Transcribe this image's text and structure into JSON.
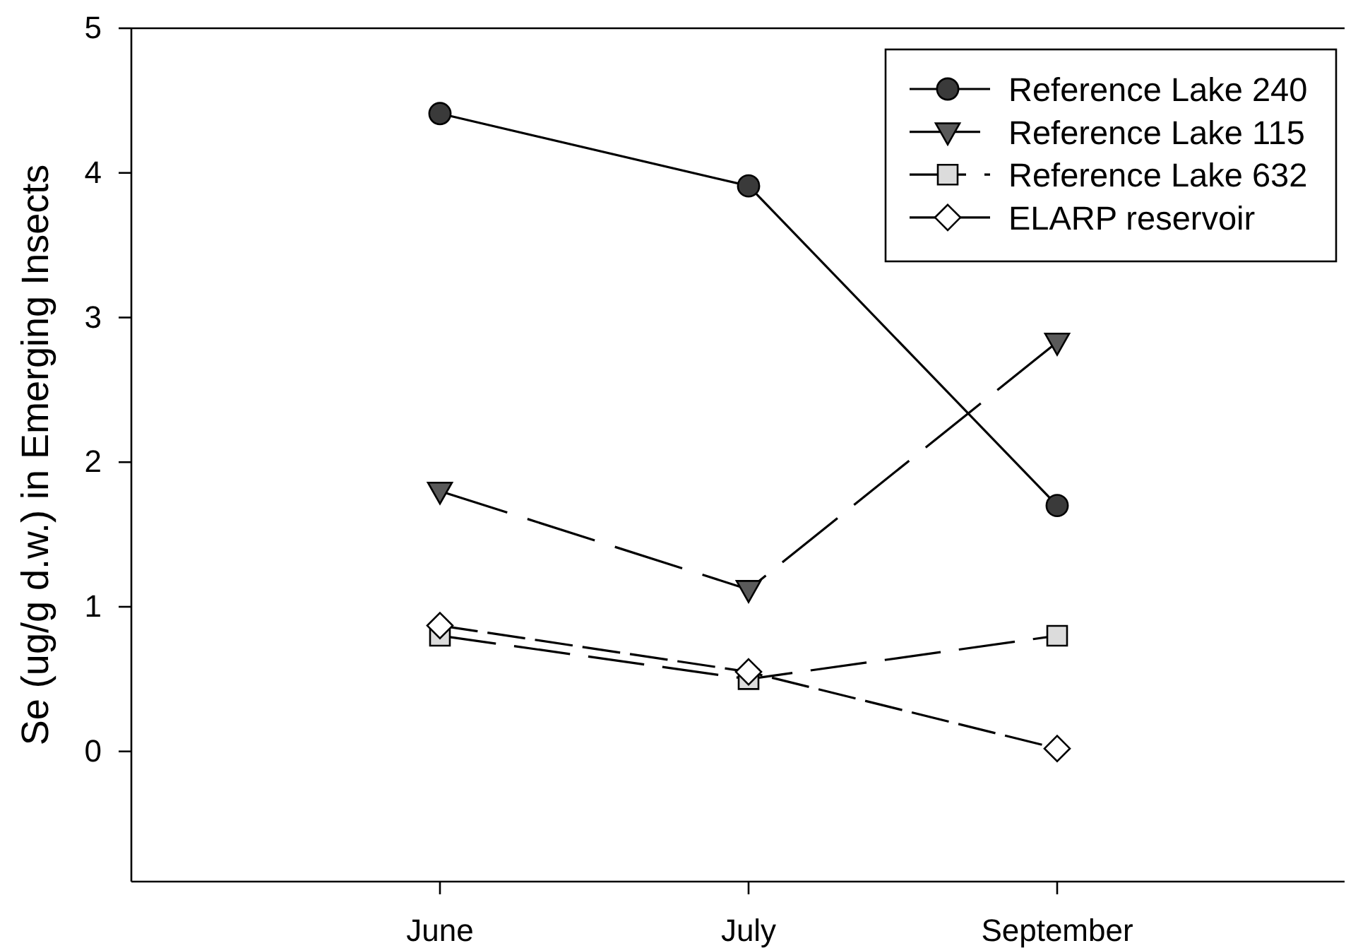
{
  "chart_data": {
    "type": "line",
    "ylabel": "Se (ug/g d.w.) in Emerging Insects",
    "categories": [
      "June",
      "July",
      "September"
    ],
    "ylim": [
      -0.9,
      5
    ],
    "yticks": [
      0,
      1,
      2,
      3,
      4,
      5
    ],
    "legend": "top right",
    "series": [
      {
        "name": "Reference Lake 240",
        "color": "#3a3a3a",
        "marker": "circle",
        "line_style": "solid",
        "values": [
          4.41,
          3.91,
          1.7
        ]
      },
      {
        "name": "Reference Lake 115",
        "color": "#5a5a5a",
        "marker": "triangle",
        "line_style": "dashed",
        "values": [
          1.8,
          1.12,
          2.83
        ]
      },
      {
        "name": "Reference Lake 632",
        "color": "#dcdcdc",
        "marker": "square",
        "line_style": "dashed",
        "values": [
          0.8,
          0.5,
          0.8
        ]
      },
      {
        "name": "ELARP reservoir",
        "color": "#ffffff",
        "marker": "diamond",
        "line_style": "dashed",
        "values": [
          0.87,
          0.55,
          0.02
        ]
      }
    ]
  }
}
